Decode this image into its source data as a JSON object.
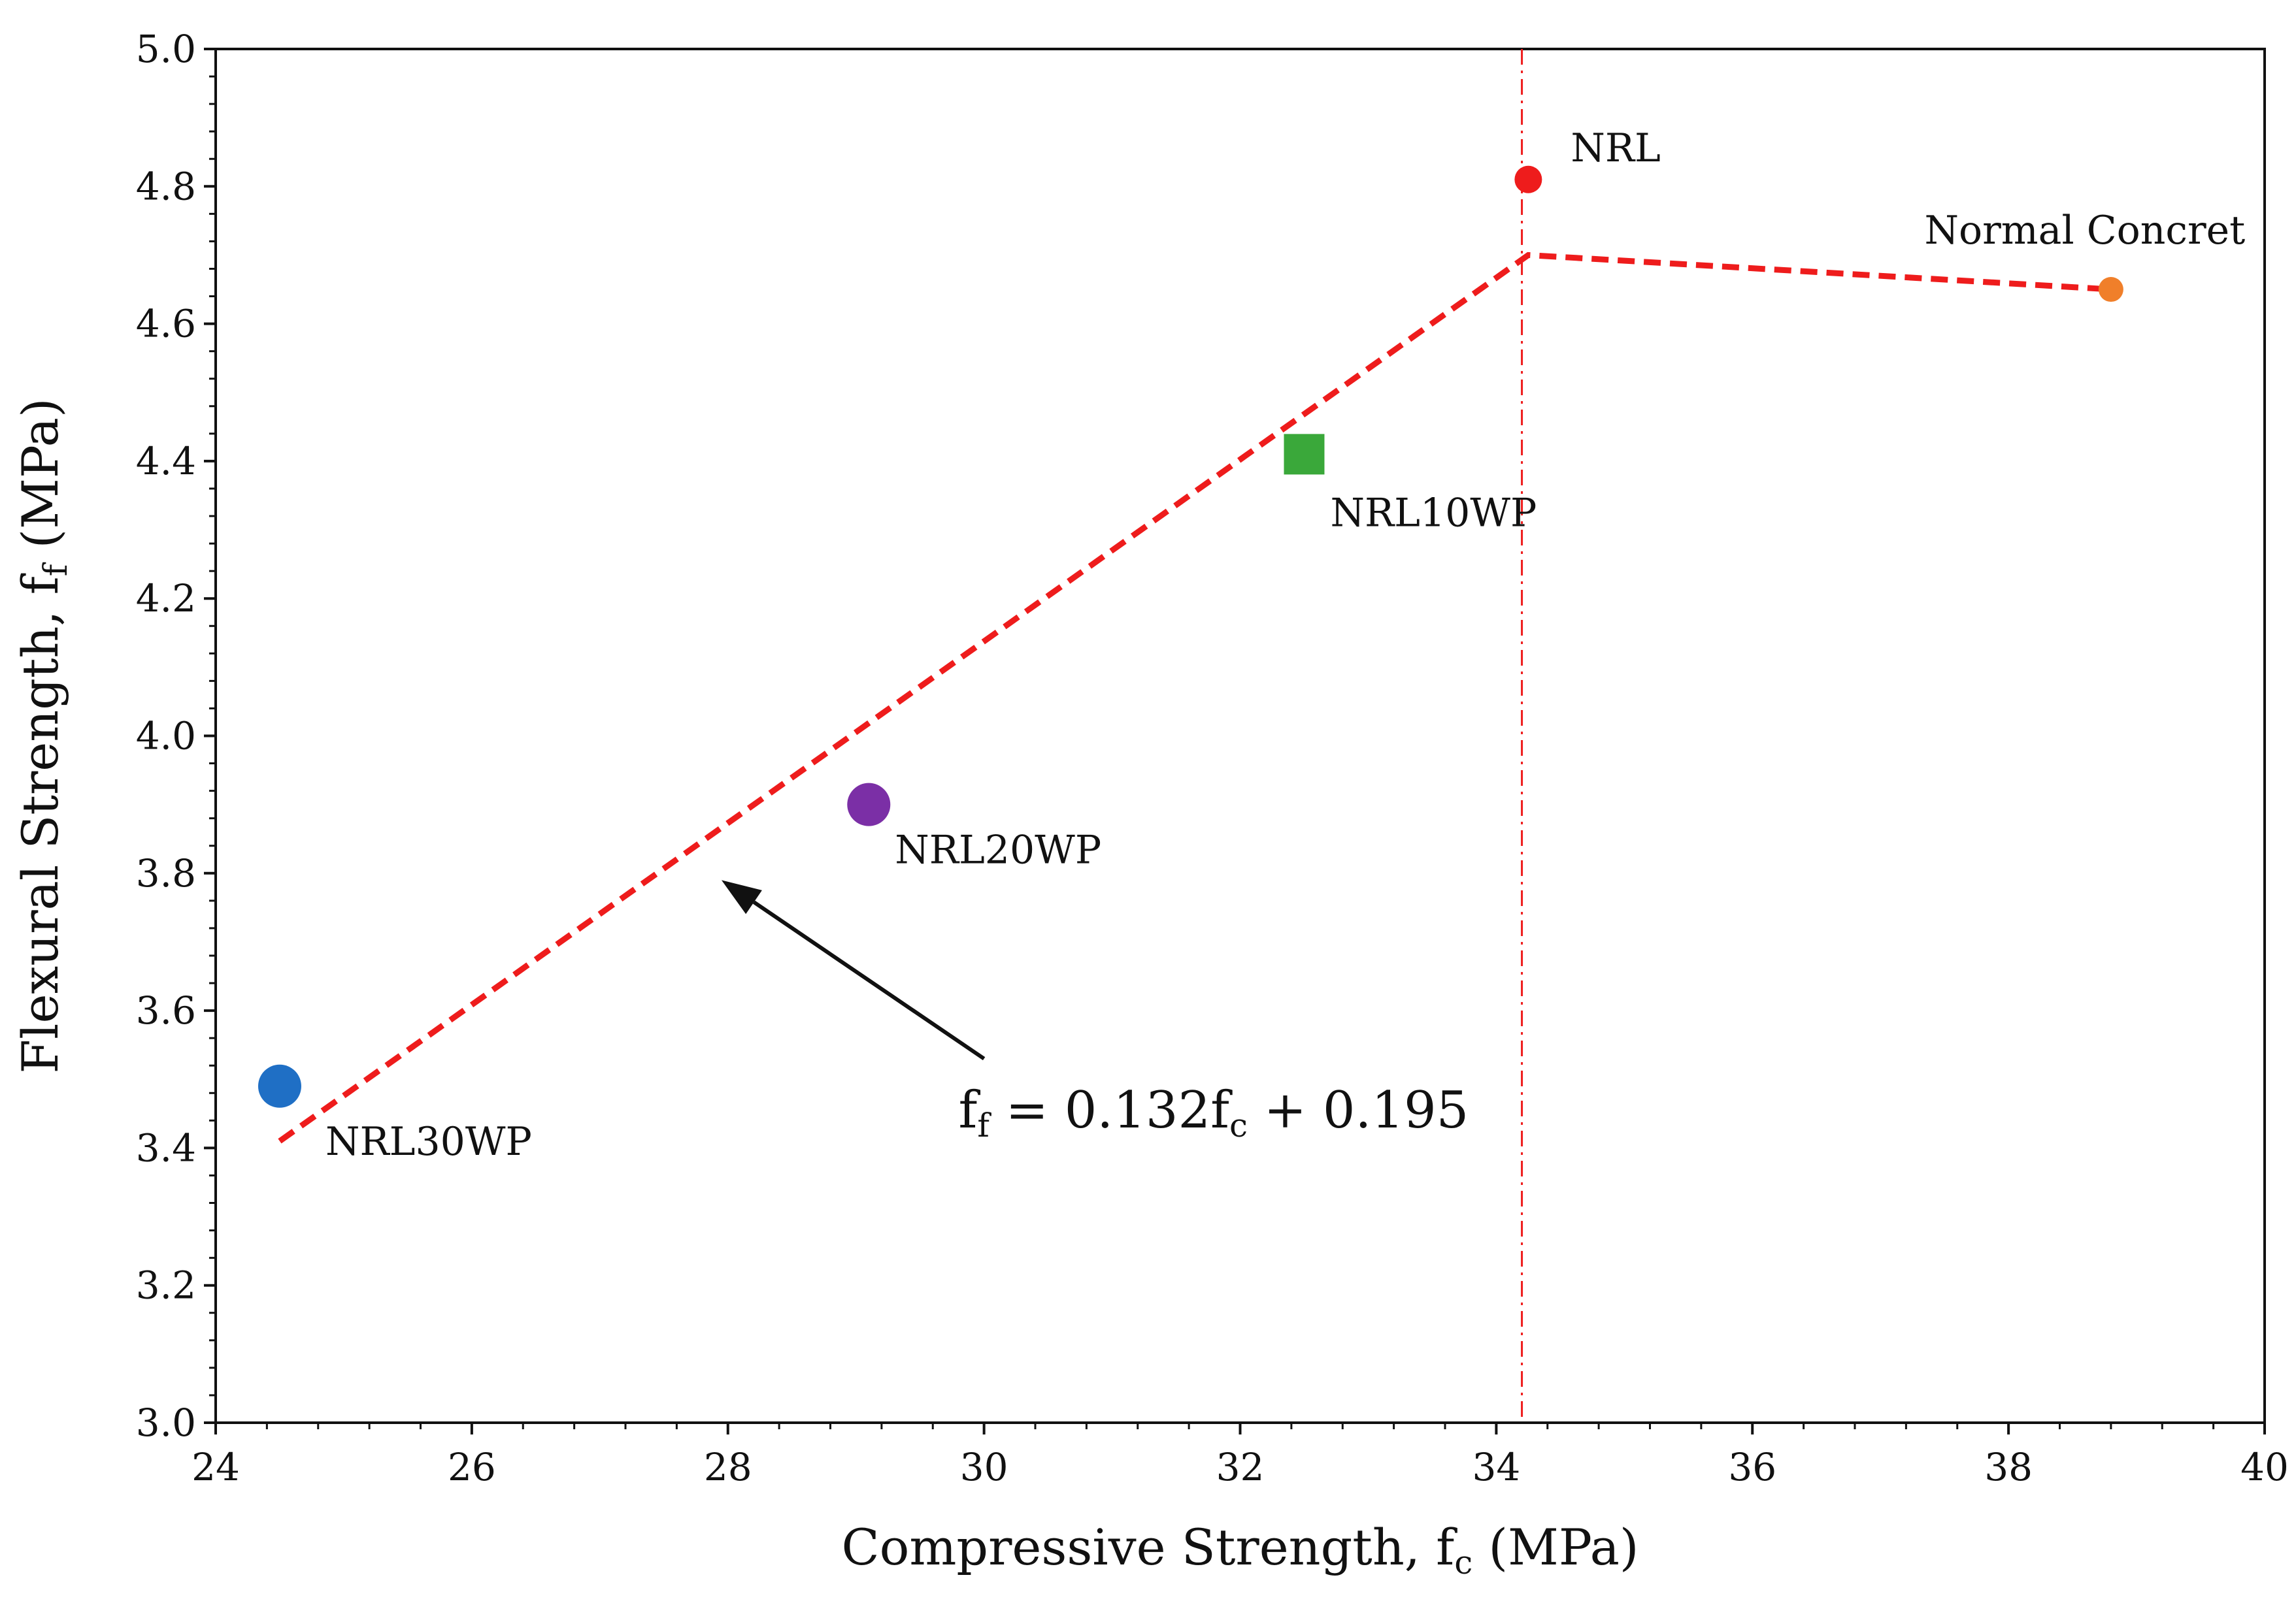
{
  "chart_data": {
    "type": "scatter",
    "title": "",
    "xlabel_main": "Compressive Strength, f",
    "xlabel_sub": "c",
    "xlabel_units": " (MPa)",
    "ylabel_main": "Flexural Strength, f",
    "ylabel_sub": "f",
    "ylabel_units": "  (MPa)",
    "xlim": [
      24,
      40
    ],
    "ylim": [
      3.0,
      5.0
    ],
    "x_ticks": [
      24,
      26,
      28,
      30,
      32,
      34,
      36,
      38,
      40
    ],
    "y_ticks": [
      3.0,
      3.2,
      3.4,
      3.6,
      3.8,
      4.0,
      4.2,
      4.4,
      4.6,
      4.8,
      5.0
    ],
    "x_tick_labels": [
      "24",
      "26",
      "28",
      "30",
      "32",
      "34",
      "36",
      "38",
      "40"
    ],
    "y_tick_labels": [
      "3.0",
      "3.2",
      "3.4",
      "3.6",
      "3.8",
      "4.0",
      "4.2",
      "4.4",
      "4.6",
      "4.8",
      "5.0"
    ],
    "points": [
      {
        "name": "NRL30WP",
        "x": 24.5,
        "y": 3.49,
        "color": "#1f6fc5",
        "marker": "circle"
      },
      {
        "name": "NRL20WP",
        "x": 29.1,
        "y": 3.9,
        "color": "#7b2fa6",
        "marker": "circle"
      },
      {
        "name": "NRL10WP",
        "x": 32.5,
        "y": 4.41,
        "color": "#3aa83a",
        "marker": "square"
      },
      {
        "name": "NRL",
        "x": 34.25,
        "y": 4.81,
        "color": "#ee1c1c",
        "marker": "circle"
      },
      {
        "name": "Normal Concret",
        "x": 38.8,
        "y": 4.65,
        "color": "#f07f2a",
        "marker": "circle"
      }
    ],
    "trend_line": {
      "color": "#ee1c1c",
      "style": "dashed",
      "points": [
        {
          "x": 24.5,
          "y": 3.41
        },
        {
          "x": 34.25,
          "y": 4.7
        },
        {
          "x": 38.8,
          "y": 4.65
        }
      ]
    },
    "vertical_reference": {
      "x": 34.2,
      "color": "#ee1c1c",
      "style": "dash-dot"
    },
    "annotation": {
      "f1": "f",
      "s1": "f",
      "mid": " = 0.132f",
      "s2": "c",
      "tail": " + 0.195",
      "text_anchor": {
        "x": 29.8,
        "y": 3.43
      },
      "arrow_from": {
        "x": 30.0,
        "y": 3.53
      },
      "arrow_to": {
        "x": 27.95,
        "y": 3.79
      }
    }
  }
}
